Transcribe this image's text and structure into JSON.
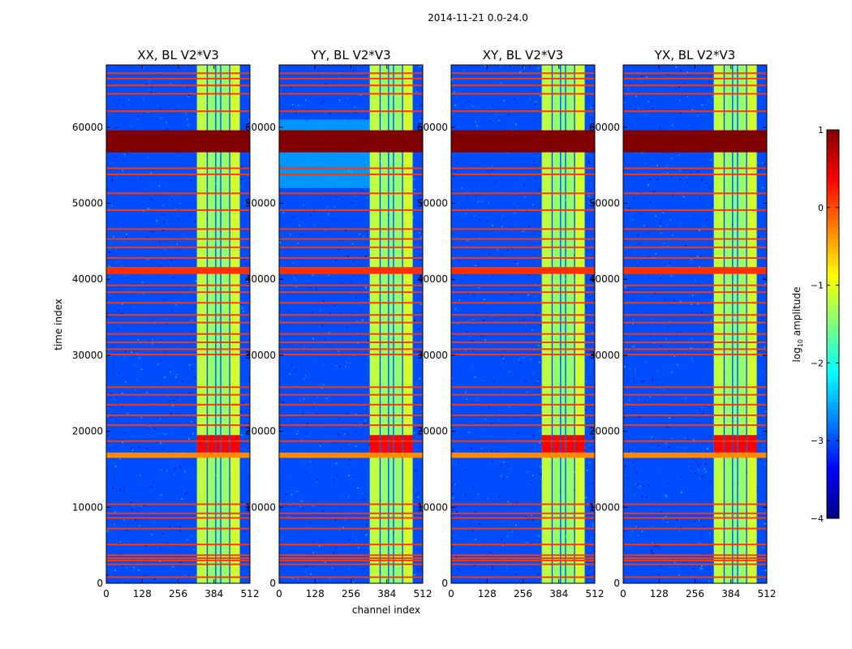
{
  "figure_title": "2014-11-21 0.0-24.0",
  "xlabel": "channel index",
  "ylabel": "time index",
  "colorbar": {
    "label_prefix": "log",
    "label_subscript": "10",
    "label_suffix": " amplitude",
    "ticks": [
      {
        "value": 1,
        "label": "1"
      },
      {
        "value": 0,
        "label": "0"
      },
      {
        "value": -1,
        "label": "−1"
      },
      {
        "value": -2,
        "label": "−2"
      },
      {
        "value": -3,
        "label": "−3"
      },
      {
        "value": -4,
        "label": "−4"
      }
    ],
    "range": [
      -4,
      1
    ],
    "colormap": "jet"
  },
  "chart_data": {
    "type": "heatmap",
    "x_range": [
      0,
      512
    ],
    "y_range": [
      0,
      68200
    ],
    "x_ticks": [
      0,
      128,
      256,
      384,
      512
    ],
    "y_ticks": [
      0,
      10000,
      20000,
      30000,
      40000,
      50000,
      60000
    ],
    "y_tick_labels": [
      "0",
      "10000",
      "20000",
      "30000",
      "40000",
      "50000",
      "60000"
    ],
    "x_tick_labels": [
      "0",
      "128",
      "256",
      "384",
      "512"
    ],
    "background_log_amplitude": -3.0,
    "signal_channel_band": [
      323,
      476
    ],
    "signal_columns": [
      {
        "from": 323,
        "to": 358,
        "level": -1.2
      },
      {
        "from": 362,
        "to": 388,
        "level": -1.4
      },
      {
        "from": 392,
        "to": 406,
        "level": -1.5
      },
      {
        "from": 410,
        "to": 438,
        "level": -1.4
      },
      {
        "from": 442,
        "to": 476,
        "level": -1.1
      }
    ],
    "saturated_time_block": {
      "from": 56700,
      "to": 59600,
      "log_amplitude": 1.0
    },
    "bright_time_band": {
      "from": 16500,
      "to": 17200,
      "log_amplitude": -0.3
    },
    "flagged_time_rows": [
      800,
      2500,
      3000,
      3300,
      3700,
      5100,
      7200,
      8600,
      9200,
      10400,
      18700,
      20800,
      22100,
      23500,
      24800,
      25800,
      30100,
      30800,
      31700,
      32800,
      34300,
      35300,
      36900,
      38300,
      39200,
      40800,
      41500,
      42800,
      44200,
      45300,
      46600,
      49100,
      51300,
      53800,
      54600,
      62100,
      64400,
      65500,
      66400,
      67100
    ],
    "panels": [
      {
        "title": "XX, BL V2*V3",
        "correlation": "XX",
        "baseline": "V2*V3",
        "hot_region": [
          17200,
          19500
        ]
      },
      {
        "title": "YY, BL V2*V3",
        "correlation": "YY",
        "baseline": "V2*V3",
        "hot_region": [
          17000,
          19500
        ]
      },
      {
        "title": "XY, BL V2*V3",
        "correlation": "XY",
        "baseline": "V2*V3",
        "hot_region": [
          17200,
          19500
        ]
      },
      {
        "title": "YX, BL V2*V3",
        "correlation": "YX",
        "baseline": "V2*V3",
        "hot_region": [
          17200,
          19500
        ]
      }
    ]
  }
}
